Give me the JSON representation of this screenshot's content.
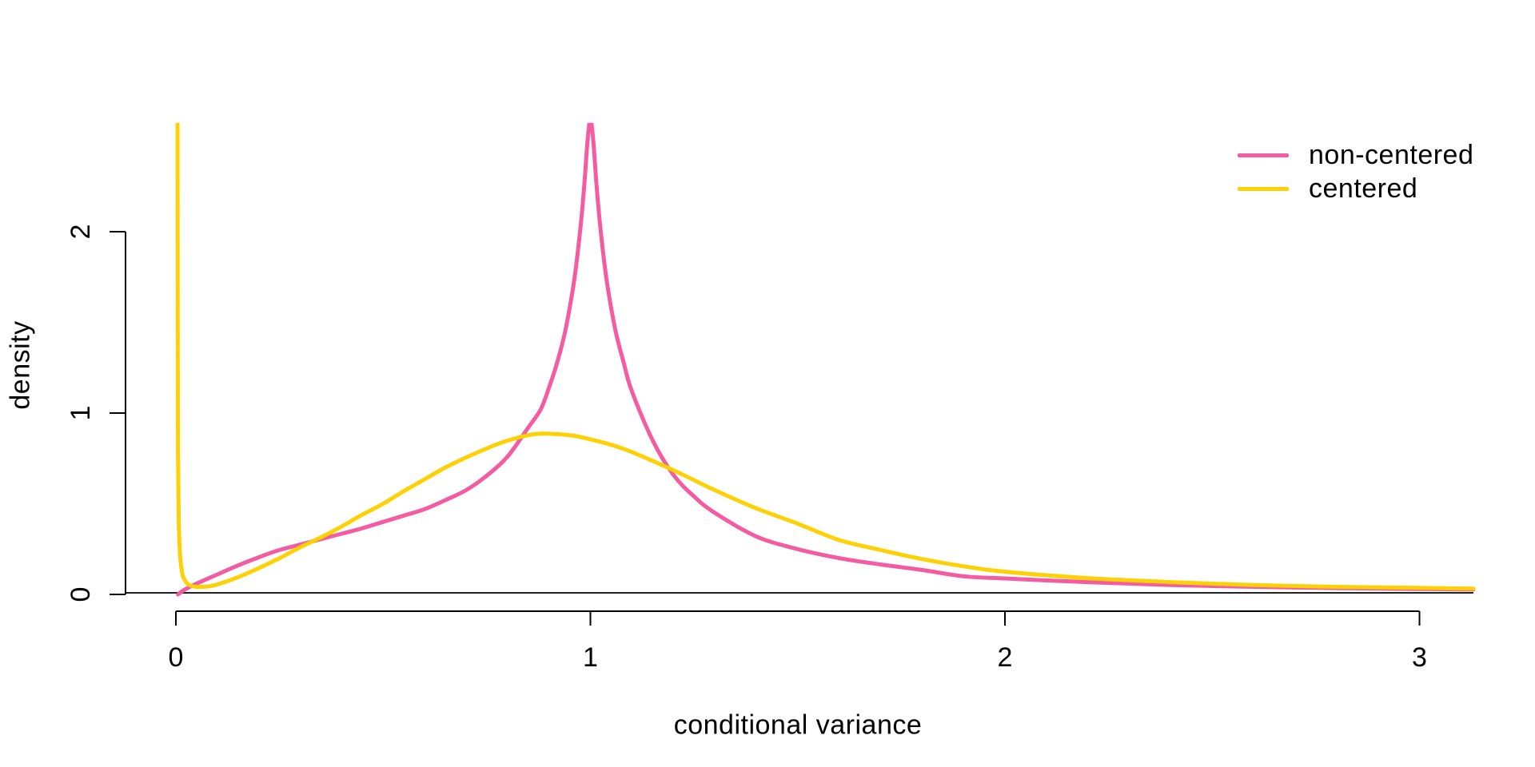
{
  "chart_data": {
    "type": "line",
    "title": "",
    "xlabel": "conditional variance",
    "ylabel": "density",
    "xlim": [
      0,
      3.13
    ],
    "ylim": [
      0,
      2.62
    ],
    "x_ticks": [
      0,
      1,
      2,
      3
    ],
    "x_tick_labels": [
      "0",
      "1",
      "2",
      "3"
    ],
    "y_ticks": [
      0,
      1,
      2
    ],
    "y_tick_labels": [
      "0",
      "1",
      "2"
    ],
    "grid": "off",
    "legend_position": "top-right",
    "axis_color": "#000000",
    "baseline_color": "#222222",
    "series": [
      {
        "name": "non-centered",
        "color": "#F45CA2",
        "x": [
          0.005,
          0.02,
          0.05,
          0.1,
          0.15,
          0.2,
          0.25,
          0.3,
          0.35,
          0.4,
          0.45,
          0.5,
          0.55,
          0.6,
          0.65,
          0.7,
          0.75,
          0.8,
          0.85,
          0.88,
          0.9,
          0.92,
          0.94,
          0.96,
          0.975,
          0.985,
          0.993,
          1.0,
          1.007,
          1.015,
          1.025,
          1.04,
          1.06,
          1.08,
          1.1,
          1.15,
          1.2,
          1.25,
          1.3,
          1.4,
          1.5,
          1.6,
          1.7,
          1.8,
          1.9,
          2.0,
          2.1,
          2.2,
          2.4,
          2.6,
          2.8,
          3.0,
          3.13
        ],
        "y": [
          0.0,
          0.025,
          0.06,
          0.11,
          0.16,
          0.205,
          0.245,
          0.275,
          0.305,
          0.335,
          0.365,
          0.4,
          0.435,
          0.47,
          0.52,
          0.575,
          0.655,
          0.76,
          0.92,
          1.02,
          1.14,
          1.28,
          1.46,
          1.72,
          2.0,
          2.25,
          2.5,
          2.62,
          2.5,
          2.25,
          2.0,
          1.72,
          1.46,
          1.28,
          1.12,
          0.85,
          0.66,
          0.54,
          0.45,
          0.32,
          0.25,
          0.2,
          0.165,
          0.135,
          0.1,
          0.088,
          0.077,
          0.068,
          0.052,
          0.042,
          0.035,
          0.03,
          0.027
        ]
      },
      {
        "name": "centered",
        "color": "#FDD105",
        "x": [
          0.004,
          0.0045,
          0.005,
          0.007,
          0.01,
          0.015,
          0.02,
          0.03,
          0.05,
          0.08,
          0.1,
          0.15,
          0.2,
          0.25,
          0.3,
          0.35,
          0.4,
          0.45,
          0.5,
          0.55,
          0.6,
          0.65,
          0.7,
          0.75,
          0.8,
          0.87,
          0.95,
          1.0,
          1.05,
          1.1,
          1.2,
          1.3,
          1.4,
          1.5,
          1.6,
          1.7,
          1.8,
          1.9,
          2.0,
          2.2,
          2.4,
          2.6,
          2.8,
          3.0,
          3.13
        ],
        "y": [
          2.62,
          1.5,
          0.8,
          0.4,
          0.22,
          0.12,
          0.085,
          0.055,
          0.042,
          0.045,
          0.055,
          0.095,
          0.145,
          0.2,
          0.26,
          0.315,
          0.375,
          0.44,
          0.5,
          0.57,
          0.635,
          0.7,
          0.755,
          0.805,
          0.848,
          0.885,
          0.878,
          0.855,
          0.825,
          0.785,
          0.685,
          0.575,
          0.475,
          0.39,
          0.3,
          0.245,
          0.195,
          0.155,
          0.125,
          0.09,
          0.068,
          0.052,
          0.042,
          0.036,
          0.032
        ]
      }
    ]
  }
}
